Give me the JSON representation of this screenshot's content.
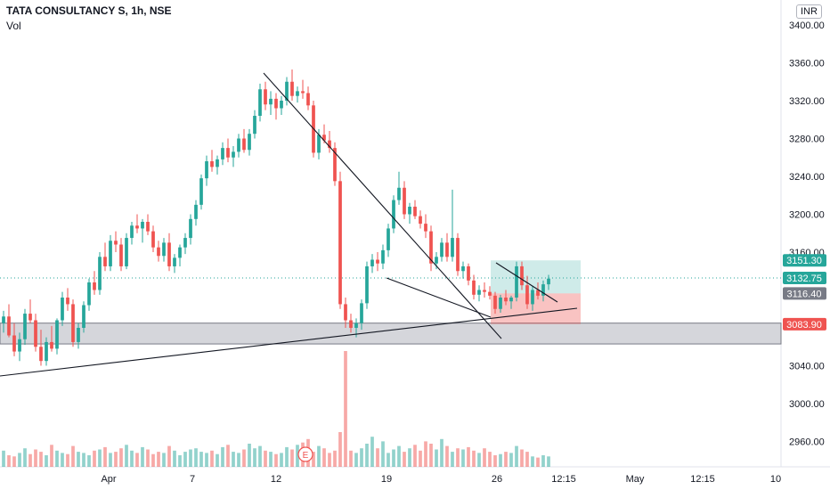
{
  "header": {
    "symbol_line": "TATA CONSULTANCY S, 1h, NSE",
    "indicator": "Vol",
    "currency": "INR"
  },
  "chart_data": {
    "type": "candlestick",
    "y_range": [
      2935,
      3425
    ],
    "y_ticks": [
      {
        "value": 3400,
        "label": "3400.00"
      },
      {
        "value": 3360,
        "label": "3360.00"
      },
      {
        "value": 3320,
        "label": "3320.00"
      },
      {
        "value": 3280,
        "label": "3280.00"
      },
      {
        "value": 3240,
        "label": "3240.00"
      },
      {
        "value": 3200,
        "label": "3200.00"
      },
      {
        "value": 3160,
        "label": "3160.00"
      },
      {
        "value": 3040,
        "label": "3040.00"
      },
      {
        "value": 3000,
        "label": "3000.00"
      },
      {
        "value": 2960,
        "label": "2960.00"
      }
    ],
    "x_labels": [
      "Apr",
      "7",
      "12",
      "19",
      "26",
      "12:15",
      "May",
      "12:15",
      "10"
    ],
    "price_tags": [
      {
        "value": 3151.3,
        "label": "3151.30",
        "color": "#26a69a"
      },
      {
        "value": 3132.75,
        "label": "3132.75",
        "color": "#26a69a"
      },
      {
        "value": 3116.4,
        "label": "3116.40",
        "color": "#787b86"
      },
      {
        "value": 3083.9,
        "label": "3083.90",
        "color": "#ef5350"
      }
    ],
    "support_zone": [
      3063,
      3085
    ],
    "candles": [
      [
        3085,
        3098,
        3075,
        3092
      ],
      [
        3092,
        3105,
        3070,
        3072
      ],
      [
        3072,
        3085,
        3050,
        3055
      ],
      [
        3055,
        3075,
        3045,
        3068
      ],
      [
        3068,
        3100,
        3062,
        3095
      ],
      [
        3095,
        3110,
        3085,
        3088
      ],
      [
        3088,
        3095,
        3055,
        3060
      ],
      [
        3060,
        3078,
        3040,
        3045
      ],
      [
        3045,
        3070,
        3040,
        3065
      ],
      [
        3065,
        3082,
        3055,
        3058
      ],
      [
        3058,
        3090,
        3052,
        3088
      ],
      [
        3088,
        3118,
        3082,
        3112
      ],
      [
        3112,
        3122,
        3098,
        3105
      ],
      [
        3105,
        3110,
        3060,
        3065
      ],
      [
        3065,
        3085,
        3058,
        3080
      ],
      [
        3080,
        3108,
        3075,
        3104
      ],
      [
        3104,
        3132,
        3098,
        3128
      ],
      [
        3128,
        3140,
        3115,
        3120
      ],
      [
        3120,
        3160,
        3115,
        3155
      ],
      [
        3155,
        3170,
        3140,
        3145
      ],
      [
        3145,
        3178,
        3140,
        3172
      ],
      [
        3172,
        3182,
        3160,
        3168
      ],
      [
        3168,
        3175,
        3140,
        3145
      ],
      [
        3145,
        3180,
        3142,
        3175
      ],
      [
        3175,
        3192,
        3168,
        3188
      ],
      [
        3188,
        3200,
        3180,
        3185
      ],
      [
        3185,
        3195,
        3170,
        3192
      ],
      [
        3192,
        3200,
        3178,
        3182
      ],
      [
        3182,
        3188,
        3160,
        3165
      ],
      [
        3165,
        3172,
        3150,
        3156
      ],
      [
        3156,
        3175,
        3150,
        3170
      ],
      [
        3170,
        3180,
        3140,
        3145
      ],
      [
        3145,
        3158,
        3138,
        3154
      ],
      [
        3154,
        3168,
        3145,
        3165
      ],
      [
        3165,
        3180,
        3158,
        3175
      ],
      [
        3175,
        3200,
        3168,
        3195
      ],
      [
        3195,
        3215,
        3188,
        3210
      ],
      [
        3210,
        3242,
        3205,
        3238
      ],
      [
        3238,
        3262,
        3230,
        3256
      ],
      [
        3256,
        3268,
        3245,
        3250
      ],
      [
        3250,
        3262,
        3242,
        3258
      ],
      [
        3258,
        3276,
        3252,
        3270
      ],
      [
        3270,
        3280,
        3255,
        3260
      ],
      [
        3260,
        3272,
        3250,
        3266
      ],
      [
        3266,
        3285,
        3260,
        3280
      ],
      [
        3280,
        3290,
        3265,
        3268
      ],
      [
        3268,
        3290,
        3262,
        3285
      ],
      [
        3285,
        3310,
        3280,
        3304
      ],
      [
        3304,
        3338,
        3298,
        3332
      ],
      [
        3332,
        3340,
        3310,
        3316
      ],
      [
        3316,
        3330,
        3305,
        3322
      ],
      [
        3322,
        3328,
        3300,
        3312
      ],
      [
        3312,
        3325,
        3305,
        3320
      ],
      [
        3320,
        3345,
        3315,
        3340
      ],
      [
        3340,
        3353,
        3320,
        3325
      ],
      [
        3325,
        3335,
        3318,
        3330
      ],
      [
        3330,
        3342,
        3322,
        3328
      ],
      [
        3328,
        3335,
        3310,
        3315
      ],
      [
        3315,
        3320,
        3260,
        3265
      ],
      [
        3265,
        3290,
        3258,
        3284
      ],
      [
        3284,
        3295,
        3275,
        3278
      ],
      [
        3278,
        3288,
        3265,
        3270
      ],
      [
        3270,
        3276,
        3230,
        3235
      ],
      [
        3235,
        3245,
        3100,
        3105
      ],
      [
        3105,
        3112,
        3080,
        3088
      ],
      [
        3088,
        3095,
        3075,
        3080
      ],
      [
        3080,
        3090,
        3070,
        3085
      ],
      [
        3085,
        3110,
        3078,
        3106
      ],
      [
        3106,
        3150,
        3100,
        3145
      ],
      [
        3145,
        3158,
        3138,
        3152
      ],
      [
        3152,
        3160,
        3140,
        3148
      ],
      [
        3148,
        3168,
        3142,
        3162
      ],
      [
        3162,
        3190,
        3155,
        3185
      ],
      [
        3185,
        3220,
        3180,
        3215
      ],
      [
        3215,
        3245,
        3210,
        3228
      ],
      [
        3228,
        3235,
        3195,
        3200
      ],
      [
        3200,
        3212,
        3190,
        3208
      ],
      [
        3208,
        3215,
        3195,
        3198
      ],
      [
        3198,
        3204,
        3185,
        3190
      ],
      [
        3190,
        3200,
        3175,
        3182
      ],
      [
        3182,
        3188,
        3140,
        3148
      ],
      [
        3148,
        3160,
        3142,
        3155
      ],
      [
        3155,
        3175,
        3150,
        3170
      ],
      [
        3170,
        3180,
        3150,
        3155
      ],
      [
        3155,
        3226,
        3150,
        3175
      ],
      [
        3175,
        3180,
        3135,
        3140
      ],
      [
        3140,
        3150,
        3132,
        3145
      ],
      [
        3145,
        3148,
        3125,
        3130
      ],
      [
        3130,
        3136,
        3110,
        3115
      ],
      [
        3115,
        3125,
        3108,
        3120
      ],
      [
        3120,
        3128,
        3112,
        3118
      ],
      [
        3118,
        3124,
        3110,
        3114
      ],
      [
        3114,
        3118,
        3095,
        3100
      ],
      [
        3100,
        3115,
        3096,
        3112
      ],
      [
        3112,
        3120,
        3104,
        3108
      ],
      [
        3108,
        3114,
        3100,
        3112
      ],
      [
        3112,
        3150,
        3108,
        3145
      ],
      [
        3145,
        3150,
        3120,
        3125
      ],
      [
        3125,
        3135,
        3100,
        3105
      ],
      [
        3105,
        3124,
        3098,
        3120
      ],
      [
        3120,
        3128,
        3110,
        3114
      ],
      [
        3114,
        3130,
        3108,
        3126
      ],
      [
        3126,
        3136,
        3120,
        3132
      ]
    ],
    "volume": [
      14,
      10,
      9,
      12,
      16,
      11,
      15,
      13,
      10,
      19,
      14,
      12,
      11,
      18,
      13,
      12,
      10,
      14,
      15,
      17,
      12,
      13,
      16,
      19,
      14,
      12,
      17,
      15,
      11,
      13,
      12,
      18,
      14,
      10,
      13,
      15,
      16,
      13,
      12,
      14,
      11,
      17,
      19,
      13,
      12,
      15,
      20,
      16,
      18,
      14,
      13,
      11,
      12,
      17,
      15,
      19,
      21,
      24,
      13,
      18,
      16,
      12,
      14,
      30,
      100,
      14,
      12,
      16,
      20,
      26,
      16,
      22,
      12,
      15,
      18,
      13,
      16,
      19,
      14,
      22,
      20,
      15,
      24,
      18,
      13,
      16,
      15,
      17,
      14,
      12,
      16,
      13,
      10,
      11,
      13,
      12,
      18,
      15,
      13,
      9,
      8,
      10,
      9
    ]
  }
}
